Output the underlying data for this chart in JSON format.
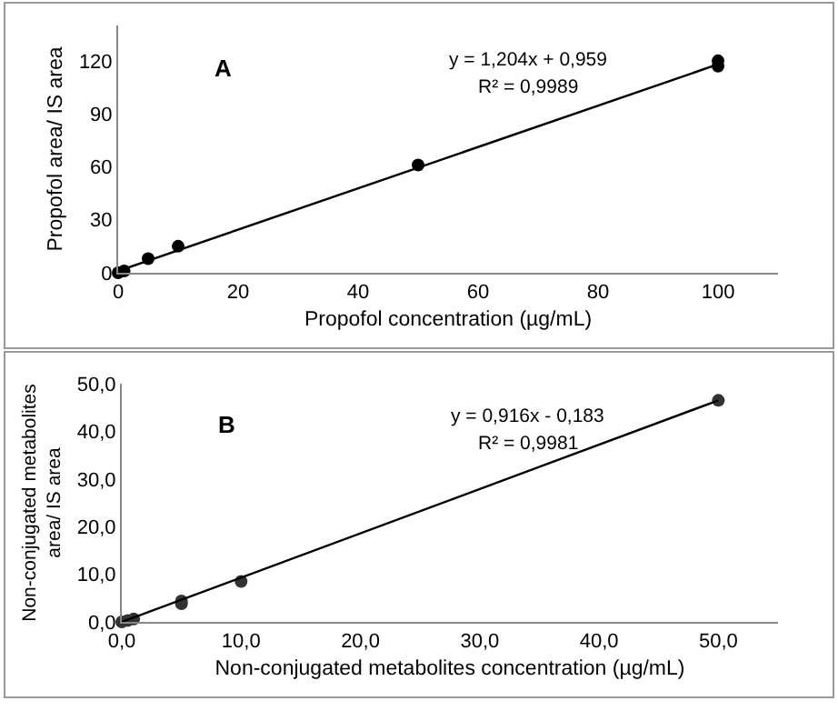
{
  "chart_data": [
    {
      "type": "scatter",
      "xlabel": "Propofol concentration (µg/mL)",
      "ylabel": "Propofol area/ IS area",
      "annotations": [
        "A",
        "y = 1,204x + 0,959",
        "R² = 0,9989"
      ],
      "xlim": [
        0,
        110
      ],
      "xticks": [
        0,
        20,
        40,
        60,
        80,
        100
      ],
      "ylim": [
        0,
        140
      ],
      "yticks": [
        0,
        30,
        60,
        90,
        120
      ],
      "grid": false,
      "marker": "circle",
      "series": [
        {
          "color": "#000000",
          "x": [
            0,
            1,
            5,
            10,
            50,
            100,
            100
          ],
          "values": [
            0,
            1,
            8,
            15,
            61,
            117,
            120
          ]
        },
        {
          "type": "line",
          "color": "#000000",
          "marker": "none",
          "line_style": "solid",
          "x": [
            0,
            100
          ],
          "values": [
            1,
            118
          ]
        }
      ]
    },
    {
      "type": "scatter",
      "xlabel": "Non-conjugated metabolites concentration (µg/mL)",
      "ylabel": "Non-conjugated metabolites area/ IS area",
      "annotations": [
        "B",
        "y = 0,916x - 0,183",
        "R² = 0,9981"
      ],
      "xlim": [
        0,
        55
      ],
      "xticks": [
        {
          "value": 0,
          "label": "0,0"
        },
        {
          "value": 10,
          "label": "10,0"
        },
        {
          "value": 20,
          "label": "20,0"
        },
        {
          "value": 30,
          "label": "30,0"
        },
        {
          "value": 40,
          "label": "40,0"
        },
        {
          "value": 50,
          "label": "50,0"
        }
      ],
      "ylim": [
        0,
        50
      ],
      "yticks": [
        {
          "value": 0,
          "label": "0,0"
        },
        {
          "value": 10,
          "label": "10,0"
        },
        {
          "value": 20,
          "label": "20,0"
        },
        {
          "value": 30,
          "label": "30,0"
        },
        {
          "value": 40,
          "label": "40,0"
        },
        {
          "value": 50,
          "label": "50,0"
        }
      ],
      "grid": false,
      "marker": "circle",
      "series": [
        {
          "color": "#333333",
          "x": [
            0,
            0.5,
            1,
            5,
            5,
            10,
            50
          ],
          "values": [
            0,
            0.3,
            0.6,
            3.8,
            4.4,
            8.5,
            46.5
          ]
        },
        {
          "type": "line",
          "color": "#000000",
          "marker": "none",
          "line_style": "solid",
          "x": [
            0,
            50
          ],
          "values": [
            0,
            46.5
          ]
        }
      ]
    }
  ]
}
